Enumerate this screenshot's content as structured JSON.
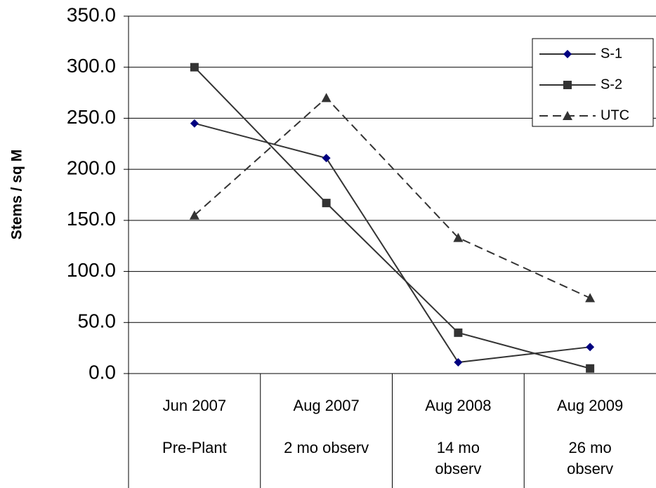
{
  "chart_data": {
    "type": "line",
    "y_label": "Stems / sq M",
    "categories": [
      "Jun 2007",
      "Aug 2007",
      "Aug 2008",
      "Aug 2009"
    ],
    "category_sublabels": [
      "Pre-Plant",
      "2 mo observ",
      "14 mo observ",
      "26 mo observ"
    ],
    "series": [
      {
        "name": "S-1",
        "color": "#333333",
        "marker": "diamond",
        "marker_color": "#000080",
        "dash": false,
        "values": [
          245,
          211,
          11,
          26
        ]
      },
      {
        "name": "S-2",
        "color": "#333333",
        "marker": "square",
        "marker_color": "#333333",
        "dash": false,
        "values": [
          300,
          167,
          40,
          5
        ]
      },
      {
        "name": "UTC",
        "color": "#333333",
        "marker": "triangle",
        "marker_color": "#333333",
        "dash": true,
        "values": [
          155,
          270,
          133,
          74
        ]
      }
    ],
    "ylim": [
      0,
      350
    ],
    "yticks": [
      {
        "value": 0,
        "label": "0.0"
      },
      {
        "value": 50,
        "label": "50.0"
      },
      {
        "value": 100,
        "label": "100.0"
      },
      {
        "value": 150,
        "label": "150.0"
      },
      {
        "value": 200,
        "label": "200.0"
      },
      {
        "value": 250,
        "label": "250.0"
      },
      {
        "value": 300,
        "label": "300.0"
      },
      {
        "value": 350,
        "label": "350.0"
      }
    ],
    "grid": true,
    "legend": "top-right"
  }
}
